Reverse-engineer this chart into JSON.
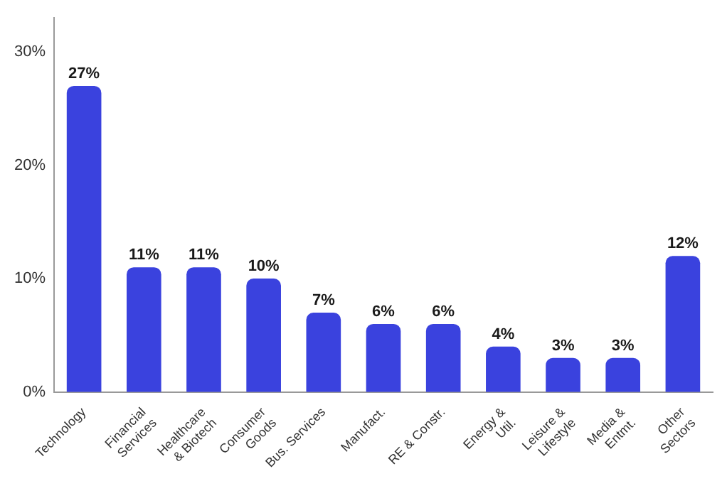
{
  "chart_data": {
    "type": "bar",
    "categories": [
      "Technology",
      "Financial\nServices",
      "Healthcare\n& Biotech",
      "Consumer\nGoods",
      "Bus. Services",
      "Manufact.",
      "RE & Constr.",
      "Energy &\nUtil.",
      "Leisure &\nLifestyle",
      "Media &\nEntmt.",
      "Other\nSectors"
    ],
    "values": [
      27,
      11,
      11,
      10,
      7,
      6,
      6,
      4,
      3,
      3,
      12
    ],
    "value_labels": [
      "27%",
      "11%",
      "11%",
      "10%",
      "7%",
      "6%",
      "6%",
      "4%",
      "3%",
      "3%",
      "12%"
    ],
    "color": "#3a42de",
    "ylim": [
      0,
      33
    ],
    "yticks": [
      {
        "value": 0,
        "label": "0%"
      },
      {
        "value": 10,
        "label": "10%"
      },
      {
        "value": 20,
        "label": "20%"
      },
      {
        "value": 30,
        "label": "30%"
      }
    ],
    "grid": false,
    "legend": false
  }
}
